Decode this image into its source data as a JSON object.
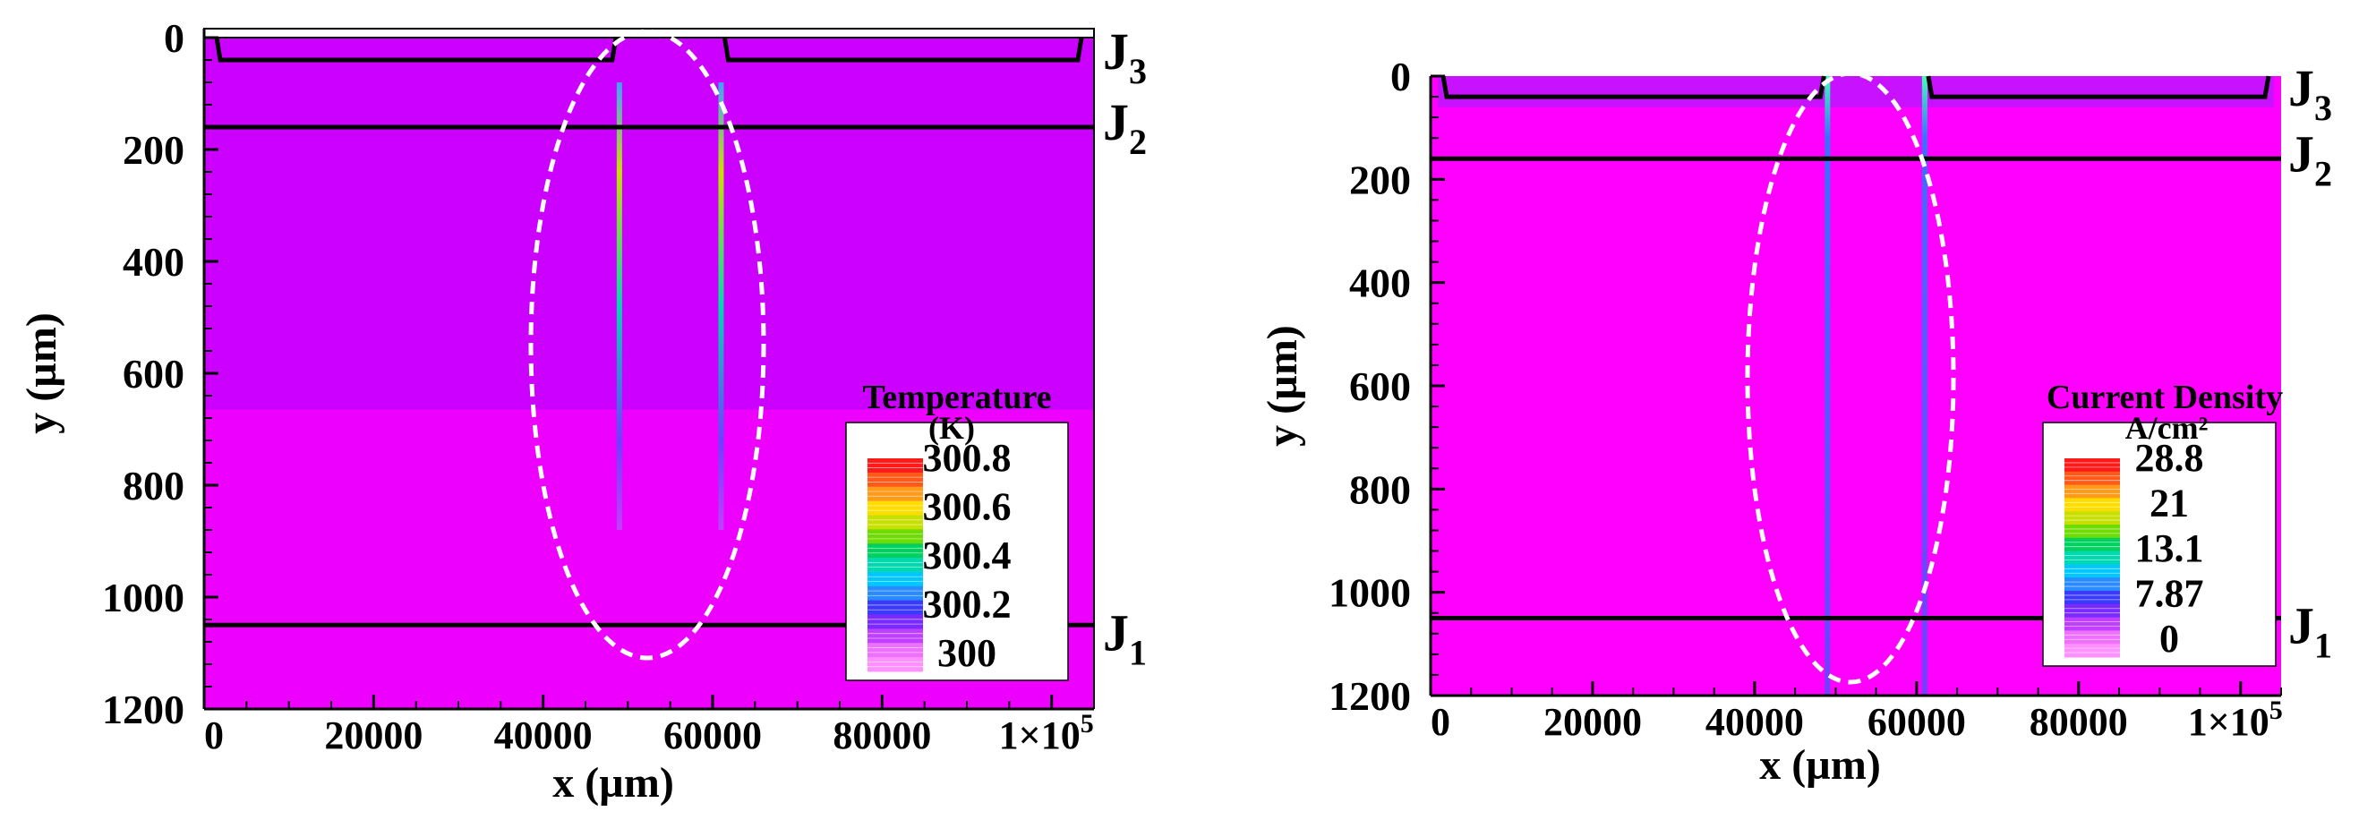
{
  "chart_data": [
    {
      "type": "heatmap",
      "xlabel": "x (µm)",
      "ylabel": "y (µm)",
      "xlim": [
        0,
        105000
      ],
      "ylim": [
        1200,
        0
      ],
      "x_tick_labels": [
        "0",
        "20000",
        "40000",
        "60000",
        "80000",
        "1×10",
        "5"
      ],
      "x_ticks": [
        0,
        20000,
        40000,
        60000,
        80000,
        100000
      ],
      "y_ticks": [
        0,
        200,
        400,
        600,
        800,
        1000,
        1200
      ],
      "junctions": [
        {
          "label": "J",
          "sub": "3",
          "y": 40
        },
        {
          "label": "J",
          "sub": "2",
          "y": 160
        },
        {
          "label": "J",
          "sub": "1",
          "y": 1050
        }
      ],
      "trench_x": [
        49000,
        61000
      ],
      "legend": {
        "title": "Temperature",
        "unit": "(K)",
        "levels": [
          "300.8",
          "300.6",
          "300.4",
          "300.2",
          "300"
        ]
      },
      "colors": {
        "field": "#cc00ff",
        "field_lower": "#ee00ff",
        "outline": "#000000",
        "ellipse": "#ffffff"
      }
    },
    {
      "type": "heatmap",
      "xlabel": "x (µm)",
      "ylabel": "y (µm)",
      "xlim": [
        0,
        105000
      ],
      "ylim": [
        1200,
        0
      ],
      "x_tick_labels": [
        "0",
        "20000",
        "40000",
        "60000",
        "80000",
        "1×10",
        "5"
      ],
      "x_ticks": [
        0,
        20000,
        40000,
        60000,
        80000,
        100000
      ],
      "y_ticks": [
        0,
        200,
        400,
        600,
        800,
        1000,
        1200
      ],
      "junctions": [
        {
          "label": "J",
          "sub": "3",
          "y": 40
        },
        {
          "label": "J",
          "sub": "2",
          "y": 160
        },
        {
          "label": "J",
          "sub": "1",
          "y": 1050
        }
      ],
      "trench_x": [
        49000,
        61000
      ],
      "legend": {
        "title": "Current Density",
        "unit": "A/cm²",
        "levels": [
          "28.8",
          "21",
          "13.1",
          "7.87",
          "0"
        ]
      },
      "colors": {
        "field": "#ff00ff",
        "field_lower": "#ff00ff",
        "outline": "#000000",
        "ellipse": "#ffffff"
      }
    }
  ]
}
